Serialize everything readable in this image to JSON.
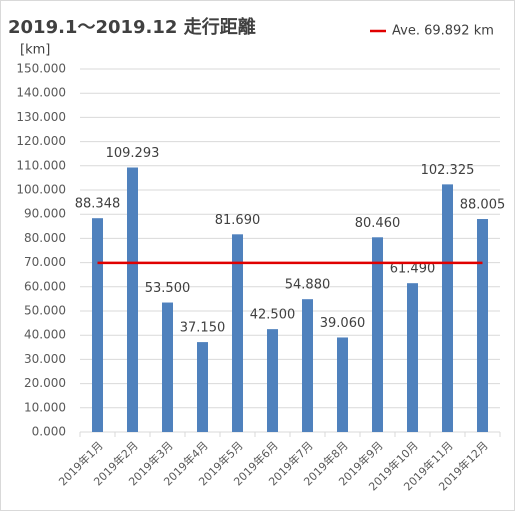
{
  "chart_data": {
    "type": "bar",
    "title": "2019.1～2019.12 走行距離",
    "y_label": "[km]",
    "categories": [
      "2019年1月",
      "2019年2月",
      "2019年3月",
      "2019年4月",
      "2019年5月",
      "2019年6月",
      "2019年7月",
      "2019年8月",
      "2019年9月",
      "2019年10月",
      "2019年11月",
      "2019年12月"
    ],
    "values": [
      88.348,
      109.293,
      53.5,
      37.15,
      81.69,
      42.5,
      54.88,
      39.06,
      80.46,
      61.49,
      102.325,
      88.005
    ],
    "value_labels": [
      "88.348",
      "109.293",
      "53.500",
      "37.150",
      "81.690",
      "42.500",
      "54.880",
      "39.060",
      "80.460",
      "61.490",
      "102.325",
      "88.005"
    ],
    "color": "#4f81bd",
    "average": {
      "name": "Ave. 69.892 km",
      "value": 69.892,
      "color": "#e00000"
    },
    "ylim": [
      0,
      150
    ],
    "yticks": [
      {
        "value": 0,
        "label": "0.000"
      },
      {
        "value": 10,
        "label": "10.000"
      },
      {
        "value": 20,
        "label": "20.000"
      },
      {
        "value": 30,
        "label": "30.000"
      },
      {
        "value": 40,
        "label": "40.000"
      },
      {
        "value": 50,
        "label": "50.000"
      },
      {
        "value": 60,
        "label": "60.000"
      },
      {
        "value": 70,
        "label": "70.000"
      },
      {
        "value": 80,
        "label": "80.000"
      },
      {
        "value": 90,
        "label": "90.000"
      },
      {
        "value": 100,
        "label": "100.000"
      },
      {
        "value": 110,
        "label": "110.000"
      },
      {
        "value": 120,
        "label": "120.000"
      },
      {
        "value": 130,
        "label": "130.000"
      },
      {
        "value": 140,
        "label": "140.000"
      },
      {
        "value": 150,
        "label": "150.000"
      }
    ],
    "grid": true,
    "legend": "top-right"
  }
}
